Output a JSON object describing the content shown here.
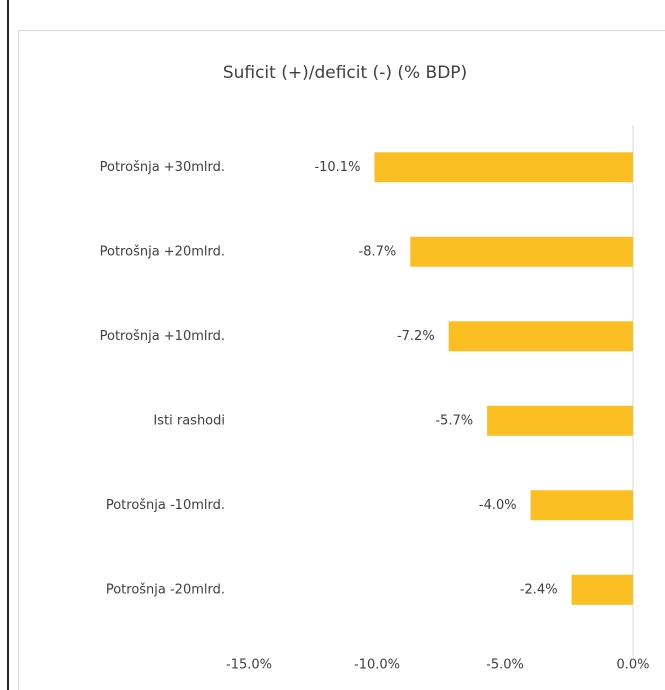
{
  "chart_data": {
    "type": "bar",
    "orientation": "horizontal",
    "title": "Suficit (+)/deficit (-) (% BDP)",
    "categories": [
      "Potrošnja +30mlrd.",
      "Potrošnja +20mlrd.",
      "Potrošnja +10mlrd.",
      "Isti rashodi",
      "Potrošnja -10mlrd.",
      "Potrošnja -20mlrd."
    ],
    "values": [
      -10.1,
      -8.7,
      -7.2,
      -5.7,
      -4.0,
      -2.4
    ],
    "value_labels": [
      "-10.1%",
      "-8.7%",
      "-7.2%",
      "-5.7%",
      "-4.0%",
      "-2.4%"
    ],
    "color": "#fbbf24",
    "xlim": [
      -15,
      0
    ],
    "xticks": [
      {
        "value": -15,
        "label": "-15.0%"
      },
      {
        "value": -10,
        "label": "-10.0%"
      },
      {
        "value": -5,
        "label": "-5.0%"
      },
      {
        "value": 0,
        "label": "0.0%"
      }
    ],
    "grid": false
  }
}
